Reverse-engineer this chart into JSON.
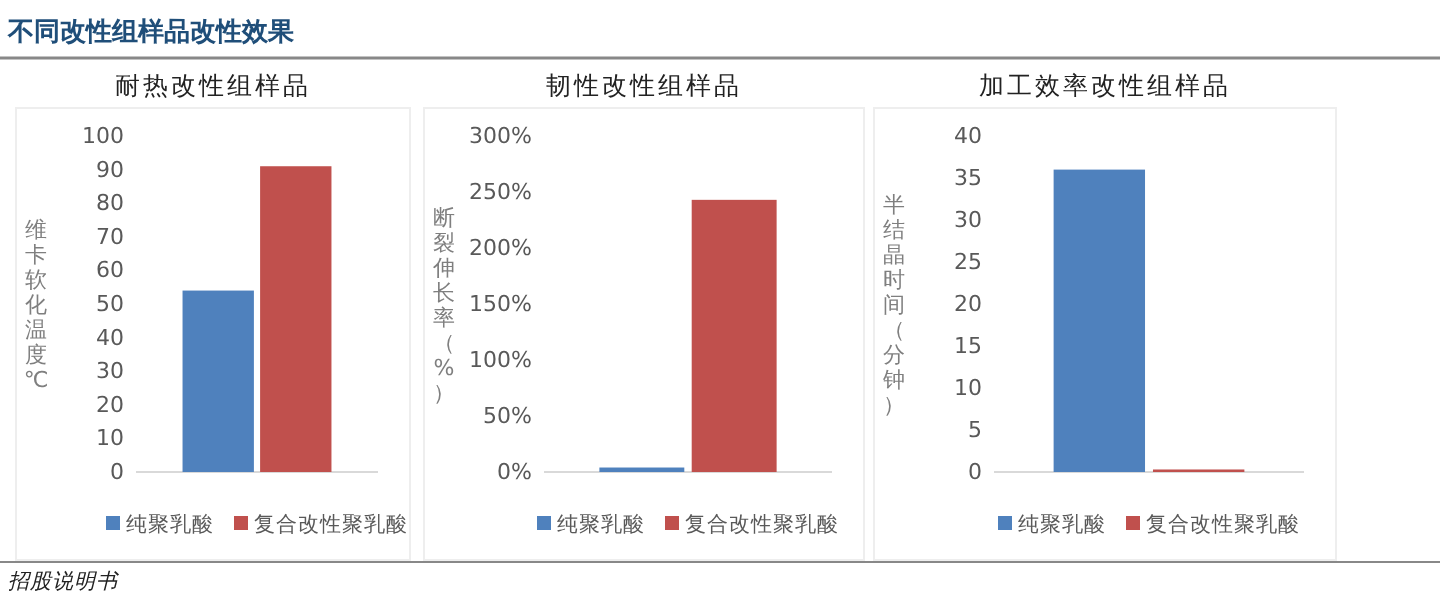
{
  "chart_data": [
    {
      "type": "bar",
      "title": "耐热改性组样品",
      "ylabel": "维卡软化温度℃",
      "categories": [
        null
      ],
      "ylim": [
        0,
        100
      ],
      "yticks": [
        0,
        10,
        20,
        30,
        40,
        50,
        60,
        70,
        80,
        90,
        100
      ],
      "legend": "bottom",
      "annotations": [
        "不同改性组样品改性效果",
        "招股说明书"
      ],
      "series": [
        {
          "name": "纯聚乳酸",
          "color": "#4f81bd",
          "values": [
            54
          ]
        },
        {
          "name": "复合改性聚乳酸",
          "color": "#c0504d",
          "values": [
            91
          ]
        }
      ]
    },
    {
      "type": "bar",
      "title": "韧性改性组样品",
      "ylabel": "断裂伸长率（%）",
      "categories": [
        null
      ],
      "ylim": [
        0,
        300
      ],
      "yticks": [
        {
          "value": 0,
          "label": "0%"
        },
        {
          "value": 50,
          "label": "50%"
        },
        {
          "value": 100,
          "label": "100%"
        },
        {
          "value": 150,
          "label": "150%"
        },
        {
          "value": 200,
          "label": "200%"
        },
        {
          "value": 250,
          "label": "250%"
        },
        {
          "value": 300,
          "label": "300%"
        }
      ],
      "legend": "bottom",
      "series": [
        {
          "name": "纯聚乳酸",
          "color": "#4f81bd",
          "values": [
            4
          ]
        },
        {
          "name": "复合改性聚乳酸",
          "color": "#c0504d",
          "values": [
            243
          ]
        }
      ]
    },
    {
      "type": "bar",
      "title": "加工效率改性组样品",
      "ylabel": "半结晶时间（分钟）",
      "categories": [
        null
      ],
      "ylim": [
        0,
        40
      ],
      "yticks": [
        0,
        5,
        10,
        15,
        20,
        25,
        30,
        35,
        40
      ],
      "legend": "bottom",
      "series": [
        {
          "name": "纯聚乳酸",
          "color": "#4f81bd",
          "values": [
            36
          ]
        },
        {
          "name": "复合改性聚乳酸",
          "color": "#c0504d",
          "values": [
            0.3
          ]
        }
      ]
    }
  ]
}
